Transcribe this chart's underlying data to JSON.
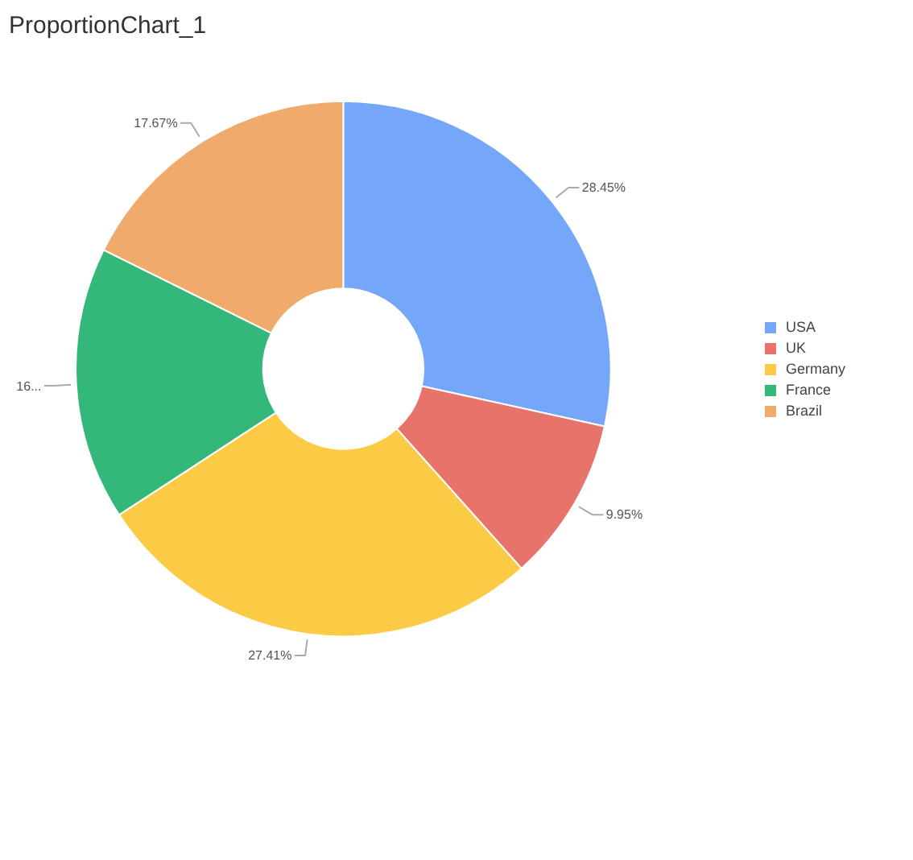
{
  "chart_data": {
    "type": "donut",
    "title": "ProportionChart_1",
    "categories": [
      "USA",
      "UK",
      "Germany",
      "France",
      "Brazil"
    ],
    "values": [
      28.45,
      9.95,
      27.41,
      16.52,
      17.67
    ],
    "colors": [
      "#75a7f9",
      "#e8736a",
      "#fbcb45",
      "#34b87a",
      "#f0aa6b"
    ],
    "value_labels": [
      "28.45%",
      "9.95%",
      "27.41%",
      "16...",
      "17.67%"
    ],
    "legend": "right"
  }
}
